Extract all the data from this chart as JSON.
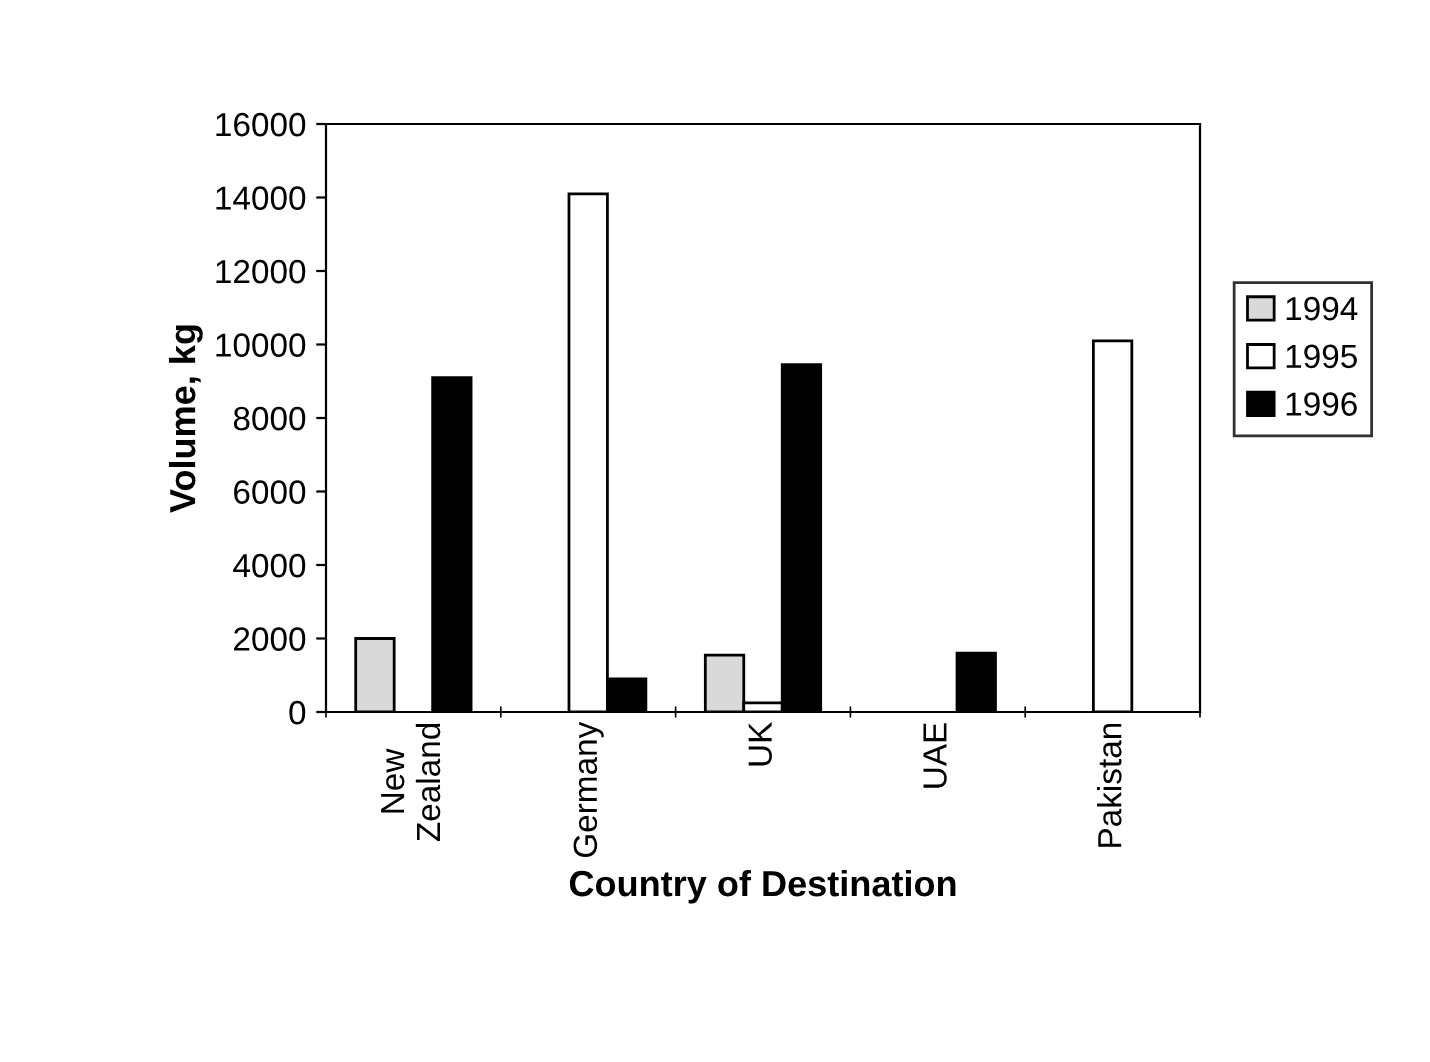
{
  "chart_data": {
    "type": "bar",
    "xlabel": "Country of Destination",
    "ylabel": "Volume, kg",
    "categories": [
      "New\nZealand",
      "Germany",
      "UK",
      "UAE",
      "Pakistan"
    ],
    "series": [
      {
        "name": "1994",
        "color": "#d9d9d9",
        "values": [
          2000,
          null,
          1550,
          null,
          null
        ]
      },
      {
        "name": "1995",
        "color": "#ffffff",
        "values": [
          null,
          14100,
          250,
          null,
          10100
        ]
      },
      {
        "name": "1996",
        "color": "#000000",
        "values": [
          9100,
          900,
          9450,
          1600,
          null
        ]
      }
    ],
    "ylim": [
      0,
      16000
    ],
    "yticks": [
      0,
      2000,
      4000,
      6000,
      8000,
      10000,
      12000,
      14000,
      16000
    ],
    "grid": false,
    "legend": "right"
  }
}
